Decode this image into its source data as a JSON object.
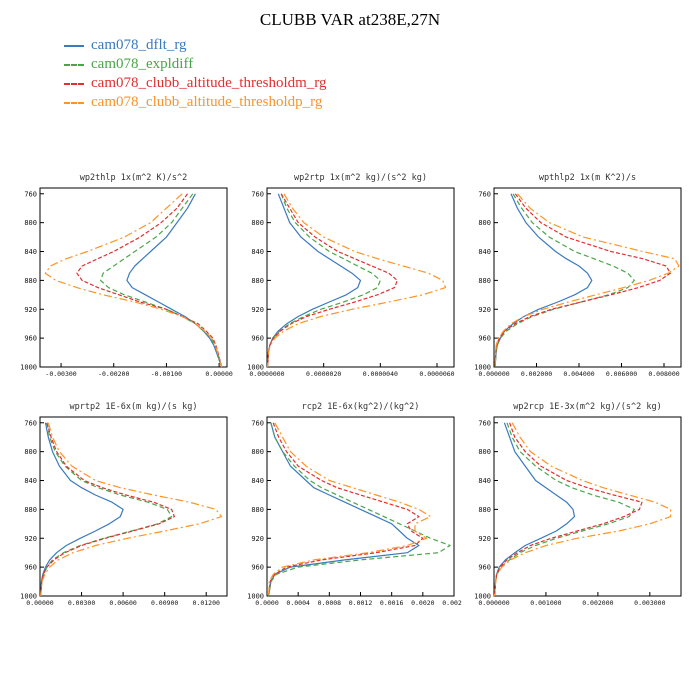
{
  "page": {
    "title": "CLUBB VAR at238E,27N"
  },
  "legend": {
    "items": [
      {
        "label": "cam078_dflt_rg",
        "color": "#3a7abf",
        "dash": ""
      },
      {
        "label": "cam078_expldiff",
        "color": "#4aa54a",
        "dash": "5,3"
      },
      {
        "label": "cam078_clubb_altitude_thresholdm_rg",
        "color": "#e03030",
        "dash": "4,2"
      },
      {
        "label": "cam078_clubb_altitude_thresholdp_rg",
        "color": "#ff9326",
        "dash": "8,3,2,3"
      }
    ]
  },
  "chart_data": {
    "type": "line",
    "layout": "2x3 grid of vertical profile plots, pressure (hPa) on y-axis increasing downward",
    "series_order": [
      "cam078_dflt_rg",
      "cam078_expldiff",
      "cam078_clubb_altitude_thresholdm_rg",
      "cam078_clubb_altitude_thresholdp_rg"
    ],
    "pressure_levels": [
      760,
      780,
      800,
      820,
      840,
      850,
      860,
      870,
      880,
      890,
      900,
      910,
      920,
      930,
      940,
      950,
      960,
      970,
      980,
      1000
    ],
    "y_ticks": [
      760,
      800,
      840,
      880,
      920,
      960,
      1000
    ],
    "y_range": [
      752,
      1000
    ],
    "charts": [
      {
        "title": "wp2thlp  1x(m^2 K)/s^2",
        "xlim": [
          -0.0034,
          0.00015
        ],
        "x_ticks": [
          -0.003,
          -0.002,
          -0.001,
          0
        ],
        "x_tick_labels": [
          "-0.00300",
          "-0.00200",
          "-0.00100",
          "0.00000"
        ],
        "series": [
          [
            -0.00045,
            -0.0006,
            -0.0008,
            -0.001,
            -0.0013,
            -0.00145,
            -0.0016,
            -0.0017,
            -0.00175,
            -0.00165,
            -0.0014,
            -0.00115,
            -0.0009,
            -0.00065,
            -0.00045,
            -0.0003,
            -0.00018,
            -0.0001,
            -5e-05,
            5e-05
          ],
          [
            -0.0005,
            -0.0007,
            -0.0009,
            -0.0012,
            -0.0016,
            -0.0018,
            -0.002,
            -0.0022,
            -0.00225,
            -0.0021,
            -0.0018,
            -0.0014,
            -0.001,
            -0.0007,
            -0.00045,
            -0.0003,
            -0.00015,
            -8e-05,
            -3e-05,
            5e-05
          ],
          [
            -0.0006,
            -0.0008,
            -0.0011,
            -0.0015,
            -0.002,
            -0.0023,
            -0.0026,
            -0.0027,
            -0.0026,
            -0.0023,
            -0.0019,
            -0.0015,
            -0.001,
            -0.0007,
            -0.0004,
            -0.00025,
            -0.00012,
            -6e-05,
            -2e-05,
            5e-05
          ],
          [
            -0.0007,
            -0.001,
            -0.0013,
            -0.0018,
            -0.0025,
            -0.0029,
            -0.0032,
            -0.0033,
            -0.0031,
            -0.0027,
            -0.0022,
            -0.0016,
            -0.0011,
            -0.0007,
            -0.00045,
            -0.00028,
            -0.00014,
            -7e-05,
            -3e-05,
            5e-05
          ]
        ]
      },
      {
        "title": "wp2rtp  1x(m^2 kg)/(s^2 kg)",
        "xlim": [
          0,
          6.6e-06
        ],
        "x_ticks": [
          0,
          2e-06,
          4e-06,
          6e-06
        ],
        "x_tick_labels": [
          "0.0000000",
          "0.0000020",
          "0.0000040",
          "0.0000060"
        ],
        "series": [
          [
            4e-07,
            6e-07,
            8e-07,
            1.2e-06,
            1.8e-06,
            2.2e-06,
            2.6e-06,
            3e-06,
            3.3e-06,
            3.2e-06,
            2.8e-06,
            2.2e-06,
            1.6e-06,
            1.1e-06,
            7e-07,
            4e-07,
            2e-07,
            1e-07,
            5e-08,
            2e-08
          ],
          [
            5e-07,
            7e-07,
            1e-06,
            1.5e-06,
            2.2e-06,
            2.7e-06,
            3.2e-06,
            3.7e-06,
            4e-06,
            3.9e-06,
            3.4e-06,
            2.7e-06,
            1.9e-06,
            1.3e-06,
            8e-07,
            4.5e-07,
            2.2e-07,
            1e-07,
            5e-08,
            2e-08
          ],
          [
            5e-07,
            8e-07,
            1.1e-06,
            1.7e-06,
            2.5e-06,
            3.1e-06,
            3.7e-06,
            4.3e-06,
            4.6e-06,
            4.5e-06,
            3.9e-06,
            3.1e-06,
            2.2e-06,
            1.4e-06,
            8.5e-07,
            4.8e-07,
            2.3e-07,
            1e-07,
            5e-08,
            2e-08
          ],
          [
            6e-07,
            9e-07,
            1.3e-06,
            2e-06,
            3.1e-06,
            3.9e-06,
            4.8e-06,
            5.7e-06,
            6.2e-06,
            6.3e-06,
            5.5e-06,
            4.3e-06,
            3e-06,
            1.9e-06,
            1.1e-06,
            6e-07,
            2.8e-07,
            1.2e-07,
            5e-08,
            2e-08
          ]
        ]
      },
      {
        "title": "wpthlp2  1x(m K^2)/s",
        "xlim": [
          0,
          0.0088
        ],
        "x_ticks": [
          0,
          0.002,
          0.004,
          0.006,
          0.008
        ],
        "x_tick_labels": [
          "0.000000",
          "0.002000",
          "0.004000",
          "0.006000",
          "0.008000"
        ],
        "series": [
          [
            0.0008,
            0.0011,
            0.0015,
            0.0021,
            0.0029,
            0.0034,
            0.004,
            0.0044,
            0.0046,
            0.0044,
            0.0038,
            0.003,
            0.0021,
            0.0014,
            0.0009,
            0.0005,
            0.0003,
            0.00015,
            0.0001,
            5e-05
          ],
          [
            0.0009,
            0.0013,
            0.0018,
            0.0026,
            0.0038,
            0.0047,
            0.0056,
            0.0063,
            0.0066,
            0.0063,
            0.0054,
            0.0041,
            0.0028,
            0.0018,
            0.0011,
            0.0006,
            0.0003,
            0.00015,
            0.0001,
            5e-05
          ],
          [
            0.001,
            0.0015,
            0.0022,
            0.0034,
            0.0055,
            0.007,
            0.0081,
            0.0083,
            0.0078,
            0.0068,
            0.0055,
            0.0041,
            0.0027,
            0.0017,
            0.001,
            0.0005,
            0.00025,
            0.00012,
            8e-05,
            5e-05
          ],
          [
            0.0011,
            0.0017,
            0.0026,
            0.0042,
            0.007,
            0.0085,
            0.0087,
            0.0082,
            0.0073,
            0.0061,
            0.0048,
            0.0035,
            0.0023,
            0.0014,
            0.0008,
            0.00045,
            0.0002,
            0.0001,
            7e-05,
            5e-05
          ]
        ]
      },
      {
        "title": "wprtp2  1E-6x(m kg)/(s kg)",
        "xlim": [
          0,
          0.0135
        ],
        "x_ticks": [
          0,
          0.003,
          0.006,
          0.009,
          0.012
        ],
        "x_tick_labels": [
          "0.00000",
          "0.00300",
          "0.00600",
          "0.00900",
          "0.01200"
        ],
        "series": [
          [
            0.0004,
            0.0006,
            0.0009,
            0.0014,
            0.0022,
            0.003,
            0.004,
            0.0052,
            0.006,
            0.0058,
            0.005,
            0.004,
            0.0029,
            0.0019,
            0.0012,
            0.0007,
            0.0004,
            0.0002,
            0.0001,
            5e-05
          ],
          [
            0.0005,
            0.0007,
            0.0011,
            0.0018,
            0.003,
            0.0042,
            0.0058,
            0.0078,
            0.0092,
            0.0095,
            0.0085,
            0.0066,
            0.0046,
            0.0029,
            0.0017,
            0.0009,
            0.0005,
            0.00025,
            0.00012,
            5e-05
          ],
          [
            0.0005,
            0.0008,
            0.0012,
            0.0019,
            0.0032,
            0.0045,
            0.0062,
            0.0082,
            0.0095,
            0.0097,
            0.0086,
            0.0067,
            0.0047,
            0.003,
            0.0018,
            0.001,
            0.0005,
            0.00025,
            0.00012,
            5e-05
          ],
          [
            0.0006,
            0.0009,
            0.0014,
            0.0023,
            0.004,
            0.0058,
            0.0082,
            0.0108,
            0.0127,
            0.0131,
            0.0115,
            0.009,
            0.0063,
            0.004,
            0.0024,
            0.0013,
            0.0007,
            0.00035,
            0.00015,
            5e-05
          ]
        ]
      },
      {
        "title": "rcp2  1E-6x(kg^2)/(kg^2)",
        "xlim": [
          0,
          0.0024
        ],
        "x_ticks": [
          0,
          0.0004,
          0.0008,
          0.0012,
          0.0016,
          0.002,
          0.0024
        ],
        "x_tick_labels": [
          "0.0000",
          "0.0004",
          "0.0008",
          "0.0012",
          "0.0016",
          "0.0020",
          "0.0024"
        ],
        "series": [
          [
            5e-05,
            0.0001,
            0.0002,
            0.0003,
            0.0005,
            0.0006,
            0.0008,
            0.001,
            0.0012,
            0.0014,
            0.0016,
            0.0017,
            0.0018,
            0.00195,
            0.0018,
            0.001,
            0.0003,
            0.0001,
            5e-05,
            2e-05
          ],
          [
            5e-05,
            0.0001,
            0.0002,
            0.00035,
            0.00055,
            0.0007,
            0.0009,
            0.0011,
            0.0013,
            0.0015,
            0.0017,
            0.0019,
            0.0021,
            0.00235,
            0.0022,
            0.0012,
            0.0004,
            0.00012,
            5e-05,
            2e-05
          ],
          [
            8e-05,
            0.00015,
            0.00025,
            0.0004,
            0.0007,
            0.0009,
            0.0012,
            0.0015,
            0.0018,
            0.00195,
            0.0018,
            0.00185,
            0.002,
            0.0019,
            0.0014,
            0.0007,
            0.00025,
            0.0001,
            4e-05,
            2e-05
          ],
          [
            0.0001,
            0.0002,
            0.0003,
            0.0005,
            0.0008,
            0.0011,
            0.0014,
            0.0017,
            0.00195,
            0.0021,
            0.0019,
            0.0019,
            0.00205,
            0.0018,
            0.0013,
            0.0006,
            0.0002,
            8e-05,
            3e-05,
            2e-05
          ]
        ]
      },
      {
        "title": "wp2rcp  1E-3x(m^2 kg)/(s^2 kg)",
        "xlim": [
          0,
          0.0036
        ],
        "x_ticks": [
          0,
          0.001,
          0.002,
          0.003
        ],
        "x_tick_labels": [
          "0.000000",
          "0.001000",
          "0.002000",
          "0.003000"
        ],
        "series": [
          [
            0.0002,
            0.0003,
            0.0004,
            0.0006,
            0.0008,
            0.001,
            0.0012,
            0.0014,
            0.00152,
            0.00155,
            0.0014,
            0.0012,
            0.0009,
            0.0006,
            0.0004,
            0.00022,
            0.0001,
            5e-05,
            3e-05,
            1e-05
          ],
          [
            0.00025,
            0.00035,
            0.0005,
            0.0008,
            0.0012,
            0.0015,
            0.0019,
            0.0024,
            0.0027,
            0.0026,
            0.0022,
            0.0017,
            0.0012,
            0.0008,
            0.0005,
            0.0003,
            0.00013,
            6e-05,
            3e-05,
            1e-05
          ],
          [
            0.0003,
            0.0004,
            0.0006,
            0.0009,
            0.0014,
            0.0018,
            0.0023,
            0.00285,
            0.0028,
            0.0025,
            0.0021,
            0.0016,
            0.0011,
            0.0007,
            0.00045,
            0.00025,
            0.00012,
            5e-05,
            3e-05,
            1e-05
          ],
          [
            0.00035,
            0.0005,
            0.0007,
            0.0011,
            0.0017,
            0.0021,
            0.0026,
            0.0031,
            0.0034,
            0.0034,
            0.003,
            0.0024,
            0.0016,
            0.001,
            0.0006,
            0.00032,
            0.00015,
            6e-05,
            3e-05,
            1e-05
          ]
        ]
      }
    ]
  }
}
